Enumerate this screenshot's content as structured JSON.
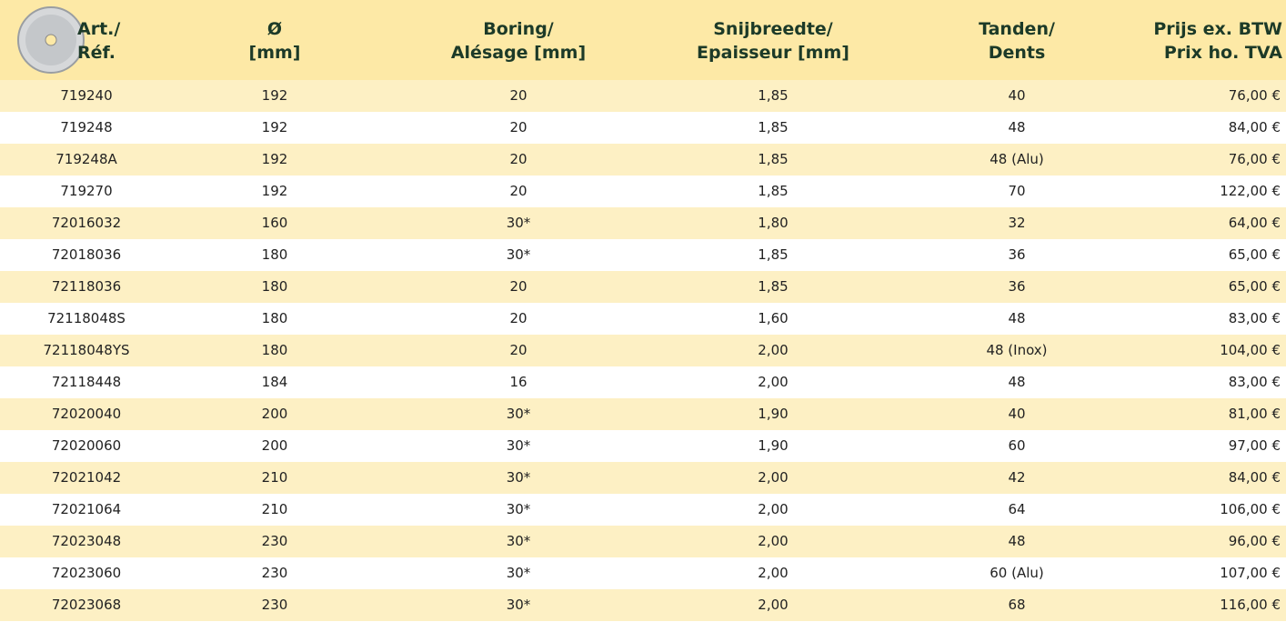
{
  "table": {
    "header": [
      [
        "Art./",
        "Réf."
      ],
      [
        "Ø",
        "[mm]"
      ],
      [
        "Boring/",
        "Alésage [mm]"
      ],
      [
        "Snijbreedte/",
        "Epaisseur [mm]"
      ],
      [
        "Tanden/",
        "Dents"
      ],
      [
        "Prijs ex. BTW",
        "Prix ho. TVA"
      ]
    ],
    "rows": [
      [
        "719240",
        "192",
        "20",
        "1,85",
        "40",
        "76,00 €"
      ],
      [
        "719248",
        "192",
        "20",
        "1,85",
        "48",
        "84,00 €"
      ],
      [
        "719248A",
        "192",
        "20",
        "1,85",
        "48 (Alu)",
        "76,00 €"
      ],
      [
        "719270",
        "192",
        "20",
        "1,85",
        "70",
        "122,00 €"
      ],
      [
        "72016032",
        "160",
        "30*",
        "1,80",
        "32",
        "64,00 €"
      ],
      [
        "72018036",
        "180",
        "30*",
        "1,85",
        "36",
        "65,00 €"
      ],
      [
        "72118036",
        "180",
        "20",
        "1,85",
        "36",
        "65,00 €"
      ],
      [
        "72118048S",
        "180",
        "20",
        "1,60",
        "48",
        "83,00 €"
      ],
      [
        "72118048YS",
        "180",
        "20",
        "2,00",
        "48 (Inox)",
        "104,00 €"
      ],
      [
        "72118448",
        "184",
        "16",
        "2,00",
        "48",
        "83,00 €"
      ],
      [
        "72020040",
        "200",
        "30*",
        "1,90",
        "40",
        "81,00 €"
      ],
      [
        "72020060",
        "200",
        "30*",
        "1,90",
        "60",
        "97,00 €"
      ],
      [
        "72021042",
        "210",
        "30*",
        "2,00",
        "42",
        "84,00 €"
      ],
      [
        "72021064",
        "210",
        "30*",
        "2,00",
        "64",
        "106,00 €"
      ],
      [
        "72023048",
        "230",
        "30*",
        "2,00",
        "48",
        "96,00 €"
      ],
      [
        "72023060",
        "230",
        "30*",
        "2,00",
        "60 (Alu)",
        "107,00 €"
      ],
      [
        "72023068",
        "230",
        "30*",
        "2,00",
        "68",
        "116,00 €"
      ]
    ]
  }
}
